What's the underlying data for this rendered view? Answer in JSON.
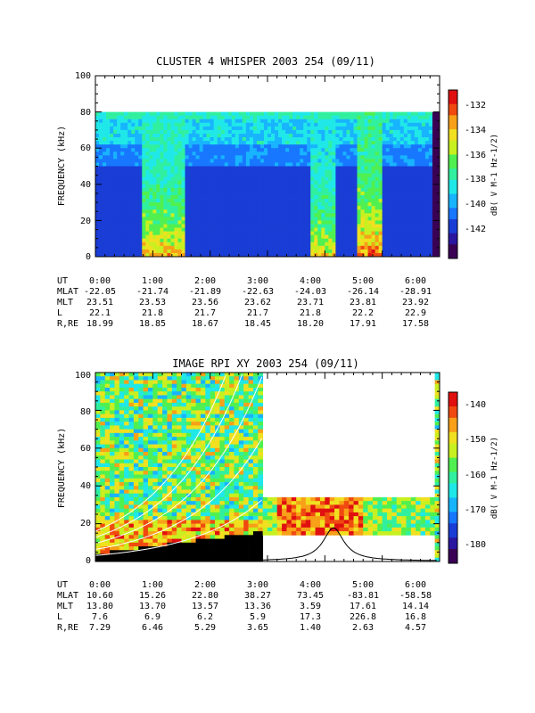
{
  "chart_data": [
    {
      "type": "heatmap",
      "title": "CLUSTER 4 WHISPER 2003 254 (09/11)",
      "ylabel": "FREQUENCY (kHz)",
      "ylim": [
        0,
        100
      ],
      "yticks": [
        "0",
        "20",
        "40",
        "60",
        "80",
        "100"
      ],
      "colorbar": {
        "label": "dB( V M-1 Hz-1/2)",
        "range": [
          -143.5,
          -131.5
        ],
        "ticks": [
          "-132",
          "-134",
          "-136",
          "-138",
          "-140",
          "-142"
        ],
        "tick_values": [
          -132,
          -134,
          -136,
          -138,
          -140,
          -142
        ]
      },
      "x": [
        "0:00",
        "1:00",
        "2:00",
        "3:00",
        "4:00",
        "5:00",
        "6:00"
      ],
      "ephemeris": [
        {
          "label": "UT",
          "values": [
            "0:00",
            "1:00",
            "2:00",
            "3:00",
            "4:00",
            "5:00",
            "6:00"
          ]
        },
        {
          "label": "MLAT",
          "values": [
            "-22.05",
            "-21.74",
            "-21.89",
            "-22.63",
            "-24.03",
            "-26.14",
            "-28.91"
          ]
        },
        {
          "label": "MLT",
          "values": [
            "23.51",
            "23.53",
            "23.56",
            "23.62",
            "23.71",
            "23.81",
            "23.92"
          ]
        },
        {
          "label": "L",
          "values": [
            "22.1",
            "21.8",
            "21.7",
            "21.7",
            "21.8",
            "22.2",
            "22.9"
          ]
        },
        {
          "label": "R,RE",
          "values": [
            "18.99",
            "18.85",
            "18.67",
            "18.45",
            "18.20",
            "17.91",
            "17.58"
          ]
        }
      ]
    },
    {
      "type": "heatmap",
      "title": "IMAGE RPI XY 2003 254 (09/11)",
      "ylabel": "FREQUENCY (kHz)",
      "ylim": [
        0,
        100
      ],
      "yticks": [
        "0",
        "20",
        "40",
        "60",
        "80",
        "100"
      ],
      "colorbar": {
        "label": "dB( V M-1 Hz-1/2)",
        "range": [
          -185,
          -136
        ],
        "ticks": [
          "-140",
          "-150",
          "-160",
          "-170",
          "-180"
        ],
        "tick_values": [
          -140,
          -150,
          -160,
          -170,
          -180
        ]
      },
      "x": [
        "0:00",
        "1:00",
        "2:00",
        "3:00",
        "4:00",
        "5:00",
        "6:00"
      ],
      "ephemeris": [
        {
          "label": "UT",
          "values": [
            "0:00",
            "1:00",
            "2:00",
            "3:00",
            "4:00",
            "5:00",
            "6:00"
          ]
        },
        {
          "label": "MLAT",
          "values": [
            "10.60",
            "15.26",
            "22.80",
            "38.27",
            "73.45",
            "-83.81",
            "-58.58"
          ]
        },
        {
          "label": "MLT",
          "values": [
            "13.80",
            "13.70",
            "13.57",
            "13.36",
            "3.59",
            "17.61",
            "14.14"
          ]
        },
        {
          "label": "L",
          "values": [
            "7.6",
            "6.9",
            "6.2",
            "5.9",
            "17.3",
            "226.8",
            "16.8"
          ]
        },
        {
          "label": "R,RE",
          "values": [
            "7.29",
            "6.46",
            "5.29",
            "3.65",
            "1.40",
            "2.63",
            "4.57"
          ]
        }
      ]
    }
  ],
  "palette": [
    "#3a0054",
    "#2b16a0",
    "#1a3dd6",
    "#1877ff",
    "#18b4ff",
    "#20e8e8",
    "#30f0a0",
    "#50f050",
    "#c8f020",
    "#f0e020",
    "#f8a018",
    "#f04a10",
    "#e01010"
  ]
}
